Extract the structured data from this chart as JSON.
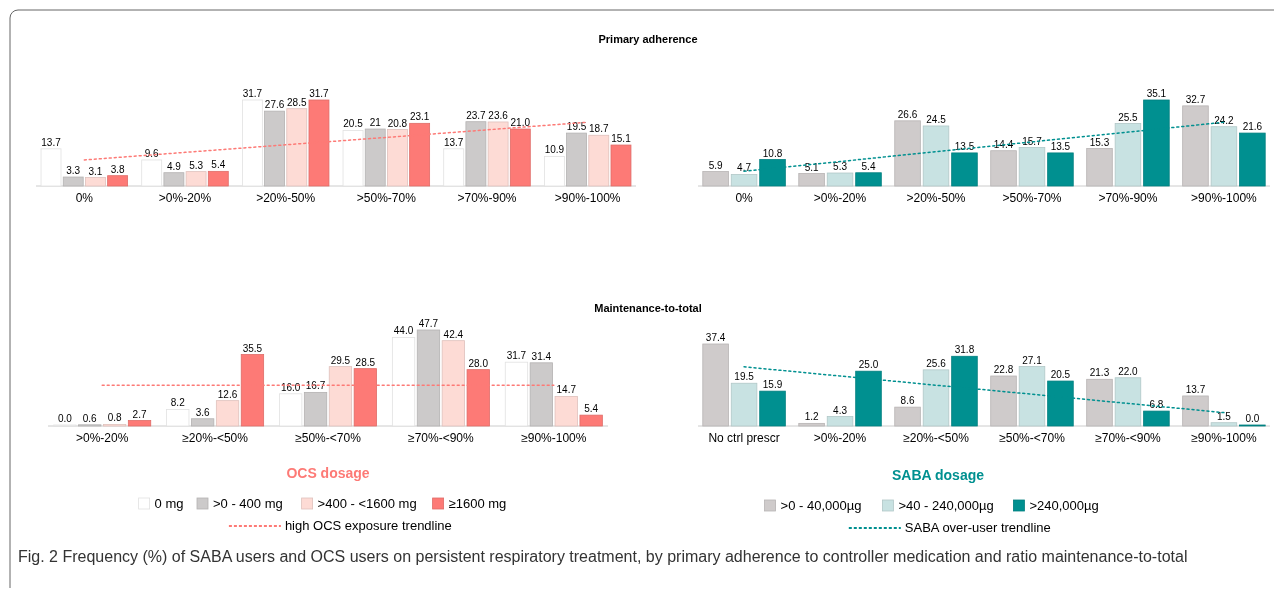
{
  "chart_data": [
    {
      "type": "bar",
      "title": "Primary adherence",
      "categories": [
        "0%",
        ">0%-20%",
        ">20%-50%",
        ">50%-70%",
        ">70%-90%",
        ">90%-100%"
      ],
      "line_style": "dotted",
      "series": [
        {
          "color": "#ffffff",
          "values": [
            13.7,
            9.6,
            31.7,
            20.5,
            13.7,
            10.9
          ],
          "value_labels": [
            "13.7",
            "9.6",
            "31.7",
            "20.5",
            "13.7",
            "10.9"
          ]
        },
        {
          "color": "#cccaca",
          "values": [
            3.3,
            4.9,
            27.6,
            21,
            23.7,
            19.5
          ],
          "value_labels": [
            "3.3",
            "4.9",
            "27.6",
            "21",
            "23.7",
            "19.5"
          ]
        },
        {
          "color": "#fddbd5",
          "values": [
            3.1,
            5.3,
            28.5,
            20.8,
            23.6,
            18.7
          ],
          "value_labels": [
            "3.1",
            "5.3",
            "28.5",
            "20.8",
            "23.6",
            "18.7"
          ]
        },
        {
          "color": "#fd7a76",
          "values": [
            3.8,
            5.4,
            31.7,
            23.1,
            21.0,
            15.1
          ],
          "value_labels": [
            "3.8",
            "5.4",
            "31.7",
            "23.1",
            "21.0",
            "15.1"
          ]
        },
        {
          "type": "line",
          "color": "#fd7a76",
          "values": [
            9.6,
            12.4,
            15.2,
            17.9,
            20.7,
            23.5
          ]
        }
      ]
    },
    {
      "type": "bar",
      "categories": [
        "0%",
        ">0%-20%",
        ">20%-50%",
        ">50%-70%",
        ">70%-90%",
        ">90%-100%"
      ],
      "line_style": "dotted",
      "series": [
        {
          "color": "#cfcbcb",
          "values": [
            5.9,
            5.1,
            26.6,
            14.4,
            15.3,
            32.7
          ],
          "value_labels": [
            "5.9",
            "5.1",
            "26.6",
            "14.4",
            "15.3",
            "32.7"
          ]
        },
        {
          "color": "#c8e2e2",
          "values": [
            4.7,
            5.3,
            24.5,
            15.7,
            25.5,
            24.2
          ],
          "value_labels": [
            "4.7",
            "5.3",
            "24.5",
            "15.7",
            "25.5",
            "24.2"
          ]
        },
        {
          "color": "#009090",
          "values": [
            10.8,
            5.4,
            13.5,
            13.5,
            35.1,
            21.6
          ],
          "value_labels": [
            "10.8",
            "5.4",
            "13.5",
            "13.5",
            "35.1",
            "21.6"
          ]
        },
        {
          "type": "line",
          "color": "#009090",
          "values": [
            6,
            10,
            14,
            18,
            22,
            26
          ]
        }
      ]
    },
    {
      "type": "bar",
      "title": "Maintenance-to-total",
      "categories": [
        ">0%-20%",
        "≥20%-<50%",
        "≥50%-<70%",
        "≥70%-<90%",
        "≥90%-100%"
      ],
      "line_style": "dotted",
      "legend": "bottom",
      "legend_title": "OCS dosage",
      "series": [
        {
          "name": "0 mg",
          "color": "#ffffff",
          "values": [
            0.0,
            8.2,
            16.0,
            44.0,
            31.7
          ],
          "value_labels": [
            "0.0",
            "8.2",
            "16.0",
            "44.0",
            "31.7"
          ]
        },
        {
          "name": ">0 - 400 mg",
          "color": "#cccaca",
          "values": [
            0.6,
            3.6,
            16.7,
            47.7,
            31.4
          ],
          "value_labels": [
            "0.6",
            "3.6",
            "16.7",
            "47.7",
            "31.4"
          ]
        },
        {
          "name": ">400 - <1600 mg",
          "color": "#fddbd5",
          "values": [
            0.8,
            12.6,
            29.5,
            42.4,
            14.7
          ],
          "value_labels": [
            "0.8",
            "12.6",
            "29.5",
            "42.4",
            "14.7"
          ]
        },
        {
          "name": "≥1600 mg",
          "color": "#fd7a76",
          "values": [
            2.7,
            35.5,
            28.5,
            28.0,
            5.4
          ],
          "value_labels": [
            "2.7",
            "35.5",
            "28.5",
            "28.0",
            "5.4"
          ]
        },
        {
          "type": "line",
          "name": "high OCS exposure trendline",
          "color": "#fd7a76",
          "values": [
            20.2,
            20.2,
            20.2,
            20.2,
            20.2
          ]
        }
      ]
    },
    {
      "type": "bar",
      "categories": [
        "No ctrl prescr",
        ">0%-20%",
        "≥20%-<50%",
        "≥50%-<70%",
        "≥70%-<90%",
        "≥90%-100%"
      ],
      "line_style": "dotted",
      "legend": "bottom",
      "legend_title": "SABA dosage",
      "annotations": [
        "Fig. 2  Frequency (%) of SABA users and OCS users on persistent respiratory treatment, by primary adherence to controller medication and ratio maintenance-to-total"
      ],
      "series": [
        {
          "name": ">0 - 40,000µg",
          "color": "#cfcbcb",
          "values": [
            37.4,
            1.2,
            8.6,
            22.8,
            21.3,
            13.7
          ],
          "value_labels": [
            "37.4",
            "1.2",
            "8.6",
            "22.8",
            "21.3",
            "13.7"
          ]
        },
        {
          "name": ">40 - 240,000µg",
          "color": "#c8e2e2",
          "values": [
            19.5,
            4.3,
            25.6,
            27.1,
            22.0,
            1.5
          ],
          "value_labels": [
            "19.5",
            "4.3",
            "25.6",
            "27.1",
            "22.0",
            "1.5"
          ]
        },
        {
          "name": ">240,000µg",
          "color": "#009090",
          "values": [
            15.9,
            25.0,
            31.8,
            20.5,
            6.8,
            0.0
          ],
          "value_labels": [
            "15.9",
            "25.0",
            "31.8",
            "20.5",
            "6.8",
            "0.0"
          ]
        },
        {
          "type": "line",
          "name": "SABA over-user trendline",
          "color": "#009090",
          "values": [
            27,
            22.8,
            18.6,
            14.5,
            10.3,
            6.1
          ]
        }
      ]
    }
  ]
}
